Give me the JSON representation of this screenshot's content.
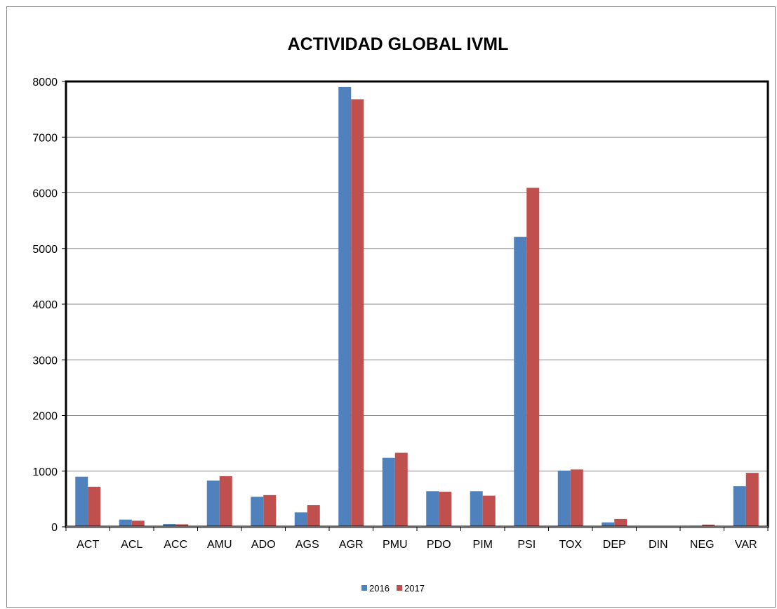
{
  "chart_data": {
    "type": "bar",
    "title": "ACTIVIDAD GLOBAL IVML",
    "xlabel": "",
    "ylabel": "",
    "categories": [
      "ACT",
      "ACL",
      "ACC",
      "AMU",
      "ADO",
      "AGS",
      "AGR",
      "PMU",
      "PDO",
      "PIM",
      "PSI",
      "TOX",
      "DEP",
      "DIN",
      "NEG",
      "VAR"
    ],
    "series": [
      {
        "name": "2016",
        "color": "#4f81bd",
        "values": [
          900,
          130,
          50,
          830,
          540,
          260,
          7900,
          1240,
          640,
          640,
          5210,
          1010,
          80,
          0,
          20,
          730
        ]
      },
      {
        "name": "2017",
        "color": "#c0504d",
        "values": [
          720,
          110,
          45,
          910,
          570,
          390,
          7680,
          1330,
          630,
          560,
          6090,
          1030,
          140,
          0,
          40,
          970
        ]
      }
    ],
    "ylim": [
      0,
      8000
    ],
    "yticks": [
      0,
      1000,
      2000,
      3000,
      4000,
      5000,
      6000,
      7000,
      8000
    ],
    "grid": true,
    "legend_position": "bottom"
  }
}
